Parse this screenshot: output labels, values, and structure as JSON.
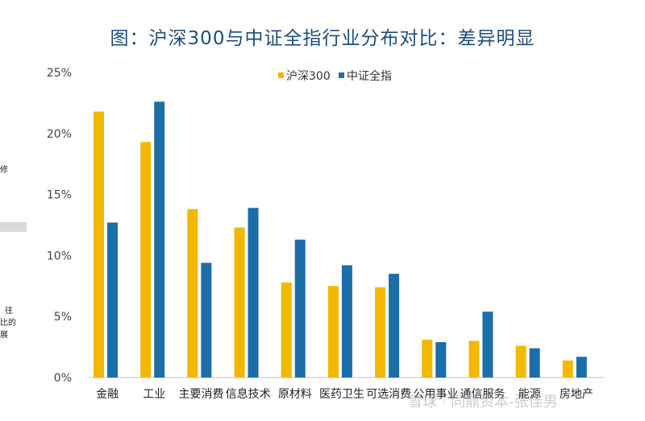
{
  "title": "图：沪深300与中证全指行业分布对比：差异明显",
  "side_fragments": [
    "修",
    "往",
    "比的",
    "展"
  ],
  "watermark": "雪球 · 同鼎资本-张佳男",
  "chart_data": {
    "type": "bar",
    "title": "图：沪深300与中证全指行业分布对比：差异明显",
    "categories": [
      "金融",
      "工业",
      "主要消费",
      "信息技术",
      "原材料",
      "医药卫生",
      "可选消费",
      "公用事业",
      "通信服务",
      "能源",
      "房地产"
    ],
    "series": [
      {
        "name": "沪深300",
        "color": "#f2b800",
        "values": [
          21.8,
          19.3,
          13.8,
          12.3,
          7.8,
          7.5,
          7.4,
          3.1,
          3.0,
          2.6,
          1.4
        ]
      },
      {
        "name": "中证全指",
        "color": "#1b6ea8",
        "values": [
          12.7,
          22.6,
          9.4,
          13.9,
          11.3,
          9.2,
          8.5,
          2.9,
          5.4,
          2.4,
          1.7
        ]
      }
    ],
    "ylim": [
      0,
      25
    ],
    "yticks": [
      "0%",
      "5%",
      "10%",
      "15%",
      "20%",
      "25%"
    ],
    "legend_position": "top-center",
    "grid": false
  }
}
